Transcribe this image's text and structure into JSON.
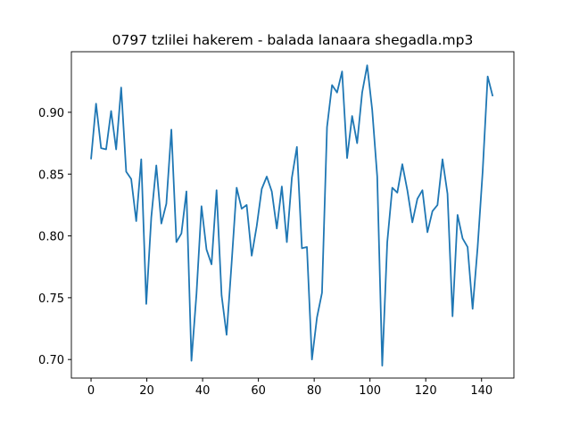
{
  "chart_data": {
    "type": "line",
    "title": "0797 tzlilei hakerem - balada lanaara shegadla.mp3",
    "x": [
      0,
      1.8,
      3.6,
      5.4,
      7.2,
      9,
      10.8,
      12.6,
      14.4,
      16.2,
      18,
      19.8,
      21.6,
      23.4,
      25.2,
      27,
      28.8,
      30.6,
      32.4,
      34.2,
      36,
      37.8,
      39.6,
      41.4,
      43.2,
      45,
      46.8,
      48.6,
      50.4,
      52.2,
      54,
      55.8,
      57.6,
      59.4,
      61.2,
      63,
      64.8,
      66.6,
      68.4,
      70.2,
      72,
      73.8,
      75.6,
      77.4,
      79.2,
      81,
      82.8,
      84.6,
      86.4,
      88.2,
      90,
      91.8,
      93.6,
      95.4,
      97.2,
      99,
      100.8,
      102.6,
      104.4,
      106.2,
      108,
      109.8,
      111.6,
      113.4,
      115.2,
      117,
      118.8,
      120.6,
      122.4,
      124.2,
      126,
      127.8,
      129.6,
      131.4,
      133.2,
      135,
      136.8,
      138.6,
      140.4,
      142.2,
      144
    ],
    "values": [
      0.862,
      0.907,
      0.871,
      0.87,
      0.901,
      0.87,
      0.92,
      0.852,
      0.846,
      0.812,
      0.862,
      0.745,
      0.815,
      0.857,
      0.81,
      0.826,
      0.886,
      0.795,
      0.802,
      0.836,
      0.699,
      0.753,
      0.824,
      0.789,
      0.777,
      0.837,
      0.752,
      0.72,
      0.778,
      0.839,
      0.822,
      0.825,
      0.784,
      0.808,
      0.838,
      0.848,
      0.836,
      0.806,
      0.84,
      0.795,
      0.847,
      0.872,
      0.79,
      0.791,
      0.7,
      0.734,
      0.754,
      0.888,
      0.922,
      0.916,
      0.933,
      0.863,
      0.897,
      0.875,
      0.916,
      0.938,
      0.902,
      0.848,
      0.695,
      0.795,
      0.839,
      0.835,
      0.858,
      0.837,
      0.811,
      0.83,
      0.837,
      0.803,
      0.82,
      0.825,
      0.862,
      0.834,
      0.735,
      0.817,
      0.798,
      0.791,
      0.741,
      0.791,
      0.852,
      0.929,
      0.913
    ],
    "color": "#1f77b4",
    "xlim": [
      -7.05,
      151.6
    ],
    "ylim": [
      0.685,
      0.949
    ],
    "xticks": [
      0,
      20,
      40,
      60,
      80,
      100,
      120,
      140
    ],
    "yticks": [
      {
        "value": 0.7,
        "label": "0.70"
      },
      {
        "value": 0.75,
        "label": "0.75"
      },
      {
        "value": 0.8,
        "label": "0.80"
      },
      {
        "value": 0.85,
        "label": "0.85"
      },
      {
        "value": 0.9,
        "label": "0.90"
      }
    ]
  }
}
